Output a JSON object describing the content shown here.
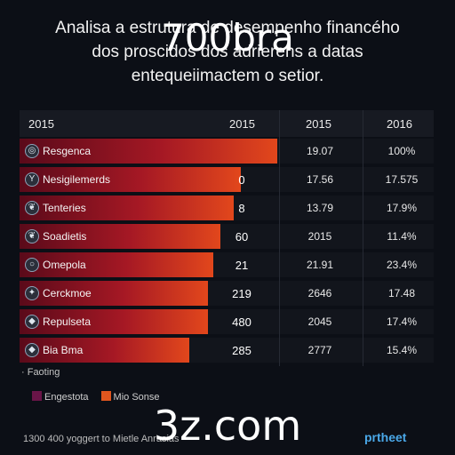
{
  "title_lines": [
    "Analisa a estrutura de desempenho financého",
    "dos proscidos dos adrierens a datas",
    "entequeiimactem o setior."
  ],
  "watermarks": {
    "top": "700bra",
    "bottom": "3z.com"
  },
  "chart_data": {
    "type": "table",
    "columns": [
      "2015",
      "2015",
      "2015",
      "2016"
    ],
    "rows": [
      {
        "label": "Resgenca",
        "icon": "globe-icon",
        "bar": 100,
        "c1": "",
        "c2": "19.07",
        "c3": "100%"
      },
      {
        "label": "Nesigilemerds",
        "icon": "y-icon",
        "bar": 86,
        "c1": "0",
        "c2": "17.56",
        "c3": "17.575"
      },
      {
        "label": "Tenteries",
        "icon": "leaf-icon",
        "bar": 83,
        "c1": "8",
        "c2": "13.79",
        "c3": "17.9%"
      },
      {
        "label": "Soadietis",
        "icon": "leaf-icon",
        "bar": 78,
        "c1": "60",
        "c2": "2015",
        "c3": "11.4%"
      },
      {
        "label": "Omepola",
        "icon": "circle-icon",
        "bar": 75,
        "c1": "21",
        "c2": "21.91",
        "c3": "23.4%"
      },
      {
        "label": "Cerckmoe",
        "icon": "star-icon",
        "bar": 73,
        "c1": "219",
        "c2": "2646",
        "c3": "17.48"
      },
      {
        "label": "Repulseta",
        "icon": "flag-icon",
        "bar": 73,
        "c1": "480",
        "c2": "2045",
        "c3": "17.4%"
      },
      {
        "label": "Bia Bma",
        "icon": "flag-icon",
        "bar": 66,
        "c1": "285",
        "c2": "2777",
        "c3": "15.4%"
      }
    ],
    "legend_title": "· Faoting",
    "legend": [
      {
        "name": "Engestota",
        "color": "#6a1548"
      },
      {
        "name": "Mio Sonse",
        "color": "#e0561e"
      }
    ]
  },
  "footer": {
    "left": "1300 400 yoggert to Mietle Anrasias",
    "right": "prtheet"
  }
}
